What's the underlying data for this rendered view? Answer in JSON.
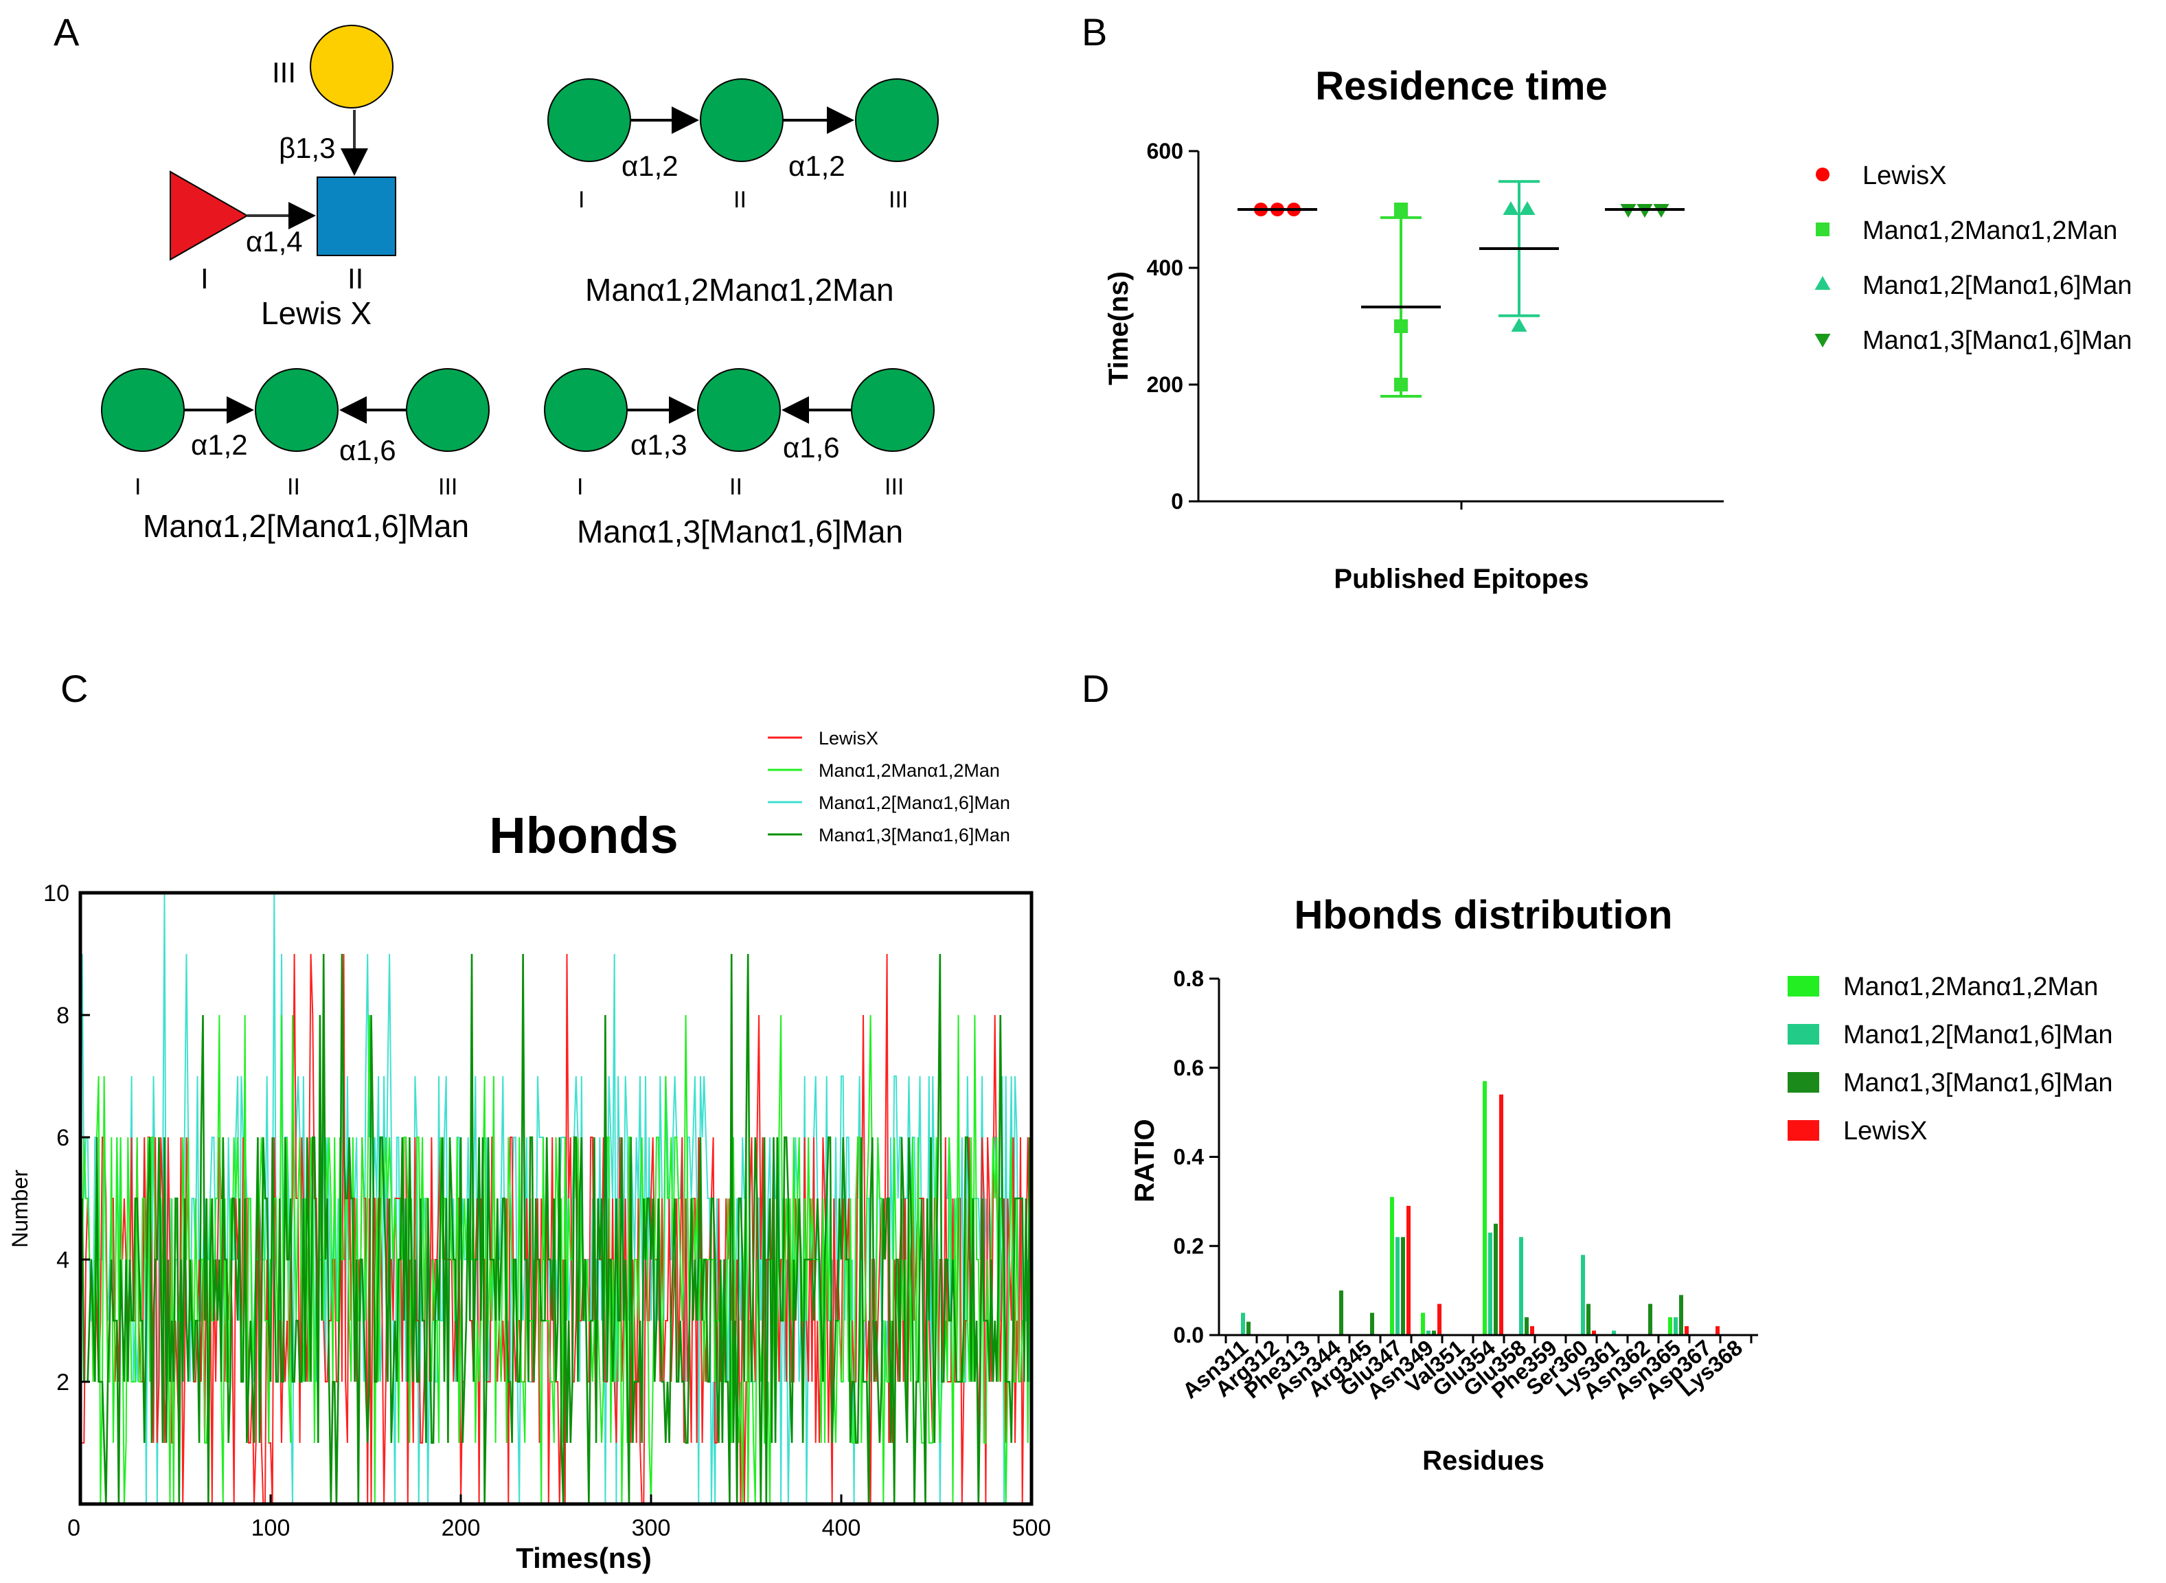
{
  "panels": {
    "A": {
      "letter": "A",
      "lewis_x": {
        "name": "Lewis X",
        "roman": [
          "I",
          "II",
          "III"
        ],
        "linkages": [
          "α1,4",
          "β1,3"
        ],
        "colors": {
          "fucose": "#e8171f",
          "glcnac": "#0a85c2",
          "galactose": "#fdcf00"
        }
      },
      "man_chain": {
        "name": "Manα1,2Manα1,2Man",
        "roman": [
          "I",
          "II",
          "III"
        ],
        "linkages": [
          "α1,2",
          "α1,2"
        ]
      },
      "man_branch_16": {
        "name": "Manα1,2[Manα1,6]Man",
        "roman": [
          "I",
          "II",
          "III"
        ],
        "linkages": [
          "α1,2",
          "α1,6"
        ]
      },
      "man_branch_13": {
        "name": "Manα1,3[Manα1,6]Man",
        "roman": [
          "I",
          "II",
          "III"
        ],
        "linkages": [
          "α1,3",
          "α1,6"
        ]
      },
      "mannose_color": "#00a651"
    },
    "B": {
      "letter": "B"
    },
    "C": {
      "letter": "C"
    },
    "D": {
      "letter": "D"
    }
  },
  "chart_data": [
    {
      "id": "B",
      "type": "scatter",
      "title": "Residence time",
      "xlabel": "Published Epitopes",
      "ylabel": "Time(ns)",
      "ylim": [
        0,
        600
      ],
      "yticks": [
        "0",
        "200",
        "400",
        "600"
      ],
      "series": [
        {
          "name": "LewisX",
          "color": "#ff0000",
          "marker": "circle",
          "values": [
            500,
            500,
            500
          ],
          "mean": 500,
          "sd": 0
        },
        {
          "name": "Manα1,2Manα1,2Man",
          "color": "#33dd33",
          "marker": "square",
          "values": [
            200,
            300,
            500
          ],
          "mean": 333,
          "sd": 153
        },
        {
          "name": "Manα1,2[Manα1,6]Man",
          "color": "#22cc88",
          "marker": "triangle-up",
          "values": [
            300,
            500,
            500
          ],
          "mean": 433,
          "sd": 115
        },
        {
          "name": "Manα1,3[Manα1,6]Man",
          "color": "#1a9a1a",
          "marker": "triangle-down",
          "values": [
            500,
            500,
            500
          ],
          "mean": 500,
          "sd": 0
        }
      ]
    },
    {
      "id": "C",
      "type": "line",
      "title": "Hbonds",
      "xlabel": "Times(ns)",
      "ylabel": "Number",
      "xlim": [
        0,
        500
      ],
      "ylim": [
        0,
        10
      ],
      "xticks": [
        "0",
        "100",
        "200",
        "300",
        "400",
        "500"
      ],
      "yticks": [
        "0",
        "2",
        "4",
        "6",
        "8",
        "10"
      ],
      "series": [
        {
          "name": "LewisX",
          "color": "#ff2020",
          "typical_range": [
            1,
            6
          ],
          "max": 9,
          "min": 0
        },
        {
          "name": "Manα1,2Manα1,2Man",
          "color": "#22ee22",
          "typical_range": [
            1,
            6
          ],
          "max": 8,
          "min": 0
        },
        {
          "name": "Manα1,2[Manα1,6]Man",
          "color": "#40e0d0",
          "typical_range": [
            2,
            7
          ],
          "max": 10,
          "min": 0
        },
        {
          "name": "Manα1,3[Manα1,6]Man",
          "color": "#0a900a",
          "typical_range": [
            1,
            6
          ],
          "max": 9,
          "min": 0
        }
      ]
    },
    {
      "id": "D",
      "type": "bar",
      "title": "Hbonds distribution",
      "xlabel": "Residues",
      "ylabel": "RATIO",
      "ylim": [
        0,
        0.8
      ],
      "yticks": [
        "0.0",
        "0.2",
        "0.4",
        "0.6",
        "0.8"
      ],
      "categories": [
        "Asn311",
        "Arg312",
        "Phe313",
        "Asn344",
        "Arg345",
        "Glu347",
        "Asn349",
        "Val351",
        "Glu354",
        "Glu358",
        "Phe359",
        "Ser360",
        "Lys361",
        "Asn362",
        "Asn365",
        "Asp367",
        "Lys368"
      ],
      "series": [
        {
          "name": "Manα1,2Manα1,2Man",
          "color": "#22ee22",
          "values": [
            0,
            0,
            0,
            0,
            0,
            0.31,
            0.05,
            0,
            0.57,
            0,
            0,
            0,
            0,
            0,
            0.04,
            0,
            0
          ]
        },
        {
          "name": "Manα1,2[Manα1,6]Man",
          "color": "#22cc88",
          "values": [
            0.05,
            0,
            0,
            0,
            0,
            0.22,
            0.01,
            0,
            0.23,
            0.22,
            0,
            0.18,
            0.01,
            0,
            0.04,
            0,
            0
          ]
        },
        {
          "name": "Manα1,3[Manα1,6]Man",
          "color": "#1a8a1a",
          "values": [
            0.03,
            0,
            0,
            0.1,
            0.05,
            0.22,
            0.01,
            0,
            0.25,
            0.04,
            0,
            0.07,
            0,
            0.07,
            0.09,
            0,
            0
          ]
        },
        {
          "name": "LewisX",
          "color": "#ff1010",
          "values": [
            0,
            0,
            0,
            0,
            0,
            0.29,
            0.07,
            0,
            0.54,
            0.02,
            0,
            0.01,
            0,
            0,
            0.02,
            0.02,
            0
          ]
        }
      ]
    }
  ]
}
